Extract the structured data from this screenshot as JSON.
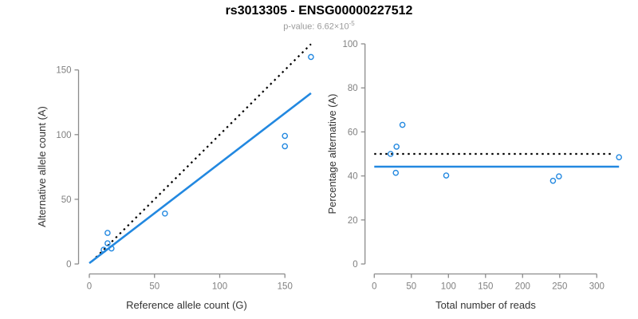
{
  "header": {
    "title": "rs3013305 - ENSG00000227512",
    "subtitle_prefix": "p-value: 6.62×10",
    "subtitle_exponent": "-5"
  },
  "colors": {
    "accent_blue": "#2288e0",
    "dotted_line": "#000000",
    "axis": "#8c8c8c",
    "tick_text": "#808080",
    "axis_label_text": "#333333",
    "title_text": "#000000",
    "subtitle_text": "#9b9b9b"
  },
  "chart_data": [
    {
      "type": "scatter",
      "name": "allele-counts-plot",
      "xlabel": "Reference allele count (G)",
      "ylabel": "Alternative allele count (A)",
      "xticks": [
        0,
        50,
        100,
        150
      ],
      "yticks": [
        0,
        50,
        100,
        150
      ],
      "xlim": [
        0,
        172
      ],
      "ylim": [
        0,
        172
      ],
      "grid": false,
      "marker": {
        "shape": "open-circle",
        "color": "#2288e0"
      },
      "points": [
        [
          11,
          11
        ],
        [
          14,
          16
        ],
        [
          17,
          12
        ],
        [
          14,
          24
        ],
        [
          58,
          39
        ],
        [
          150,
          91
        ],
        [
          150,
          99
        ],
        [
          170,
          160
        ]
      ],
      "lines": [
        {
          "name": "identity-line",
          "style": "dotted",
          "color": "#000000",
          "x": [
            2,
            170
          ],
          "y": [
            2,
            170
          ]
        },
        {
          "name": "fit-line",
          "style": "solid",
          "color": "#2288e0",
          "x": [
            0,
            170
          ],
          "y": [
            0.6,
            132
          ]
        }
      ]
    },
    {
      "type": "scatter",
      "name": "percentage-alternative-plot",
      "xlabel": "Total number of reads",
      "ylabel": "Percentage alternative (A)",
      "xticks": [
        0,
        50,
        100,
        150,
        200,
        250,
        300
      ],
      "yticks": [
        0,
        20,
        40,
        60,
        80,
        100
      ],
      "xlim": [
        0,
        332
      ],
      "ylim": [
        0,
        100
      ],
      "grid": false,
      "marker": {
        "shape": "open-circle",
        "color": "#2288e0"
      },
      "points": [
        [
          22,
          50
        ],
        [
          30,
          53.3
        ],
        [
          29,
          41.4
        ],
        [
          38,
          63.2
        ],
        [
          97,
          40.2
        ],
        [
          241,
          37.8
        ],
        [
          249,
          39.8
        ],
        [
          330,
          48.5
        ]
      ],
      "lines": [
        {
          "name": "expected-line",
          "style": "dotted",
          "color": "#000000",
          "x": [
            0,
            322
          ],
          "y": [
            50,
            50
          ]
        },
        {
          "name": "fit-line",
          "style": "solid",
          "color": "#2288e0",
          "x": [
            0,
            330
          ],
          "y": [
            44.2,
            44.2
          ]
        }
      ]
    }
  ]
}
